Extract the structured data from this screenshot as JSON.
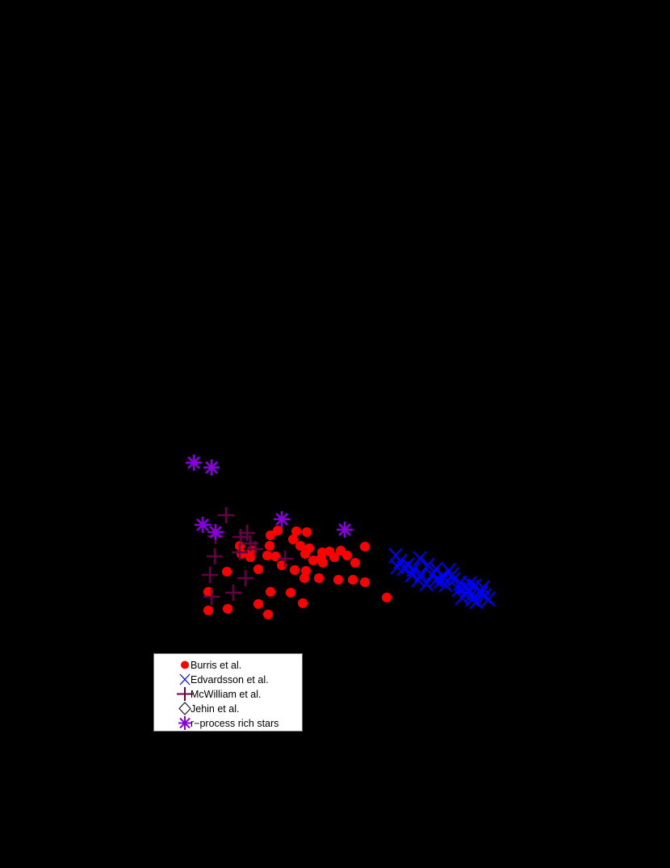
{
  "chart_data": {
    "type": "scatter",
    "title": "",
    "xlabel": "",
    "ylabel": "",
    "coordinate_note": "Axes, ticks and labels are rendered black on black background and are not visible; point positions given in screen pixels (x right, y down).",
    "legend_position": "lower-left, below data",
    "series": [
      {
        "name": "Burris et al.",
        "marker": "filled-circle",
        "color": "#ff0000",
        "points": [
          [
            344,
            657
          ],
          [
            335,
            663
          ],
          [
            367,
            658
          ],
          [
            380,
            659
          ],
          [
            363,
            668
          ],
          [
            372,
            676
          ],
          [
            383,
            679
          ],
          [
            297,
            676
          ],
          [
            334,
            676
          ],
          [
            378,
            686
          ],
          [
            399,
            684
          ],
          [
            408,
            683
          ],
          [
            422,
            682
          ],
          [
            414,
            690
          ],
          [
            400,
            697
          ],
          [
            388,
            694
          ],
          [
            398,
            691
          ],
          [
            430,
            688
          ],
          [
            452,
            677
          ],
          [
            440,
            697
          ],
          [
            331,
            688
          ],
          [
            341,
            689
          ],
          [
            349,
            700
          ],
          [
            365,
            706
          ],
          [
            379,
            707
          ],
          [
            377,
            716
          ],
          [
            395,
            716
          ],
          [
            419,
            718
          ],
          [
            437,
            718
          ],
          [
            452,
            721
          ],
          [
            281,
            708
          ],
          [
            320,
            705
          ],
          [
            299,
            686
          ],
          [
            258,
            733
          ],
          [
            335,
            733
          ],
          [
            360,
            734
          ],
          [
            479,
            740
          ],
          [
            320,
            748
          ],
          [
            375,
            747
          ],
          [
            258,
            756
          ],
          [
            282,
            754
          ],
          [
            332,
            761
          ],
          [
            310,
            690
          ],
          [
            312,
            682
          ]
        ]
      },
      {
        "name": "Edvardsson et al.",
        "marker": "x-cross",
        "color": "#0000ff",
        "points": [
          [
            490,
            688
          ],
          [
            496,
            695
          ],
          [
            505,
            700
          ],
          [
            512,
            705
          ],
          [
            520,
            692
          ],
          [
            530,
            700
          ],
          [
            522,
            712
          ],
          [
            535,
            712
          ],
          [
            540,
            705
          ],
          [
            548,
            713
          ],
          [
            556,
            707
          ],
          [
            562,
            718
          ],
          [
            570,
            722
          ],
          [
            575,
            727
          ],
          [
            580,
            730
          ],
          [
            588,
            726
          ],
          [
            595,
            732
          ],
          [
            600,
            738
          ],
          [
            605,
            742
          ],
          [
            590,
            745
          ],
          [
            584,
            737
          ],
          [
            576,
            736
          ],
          [
            568,
            730
          ],
          [
            552,
            724
          ],
          [
            545,
            720
          ],
          [
            518,
            718
          ],
          [
            510,
            712
          ],
          [
            500,
            704
          ],
          [
            492,
            702
          ],
          [
            560,
            712
          ],
          [
            550,
            716
          ],
          [
            540,
            718
          ],
          [
            528,
            723
          ],
          [
            572,
            740
          ],
          [
            585,
            742
          ],
          [
            596,
            735
          ],
          [
            582,
            723
          ],
          [
            598,
            728
          ]
        ]
      },
      {
        "name": "McWilliam et al.",
        "marker": "plus",
        "color": "#660044",
        "points": [
          [
            280,
            638
          ],
          [
            298,
            665
          ],
          [
            306,
            660
          ],
          [
            310,
            673
          ],
          [
            297,
            684
          ],
          [
            316,
            680
          ],
          [
            353,
            692
          ],
          [
            266,
            689
          ],
          [
            260,
            712
          ],
          [
            304,
            716
          ],
          [
            262,
            739
          ],
          [
            289,
            734
          ],
          [
            267,
            664
          ]
        ]
      },
      {
        "name": "Jehin et al.",
        "marker": "open-diamond",
        "color": "#000000",
        "points": []
      },
      {
        "name": "r-process rich stars",
        "marker": "asterisk",
        "color": "#8800dd",
        "points": [
          [
            240,
            573
          ],
          [
            262,
            579
          ],
          [
            251,
            650
          ],
          [
            267,
            659
          ],
          [
            349,
            643
          ],
          [
            427,
            656
          ]
        ]
      }
    ]
  },
  "legend": {
    "items": [
      {
        "label": "Burris et al."
      },
      {
        "label": "Edvardsson et al."
      },
      {
        "label": "McWilliam et al."
      },
      {
        "label": "Jehin et al."
      },
      {
        "label": "r−process rich stars"
      }
    ]
  }
}
